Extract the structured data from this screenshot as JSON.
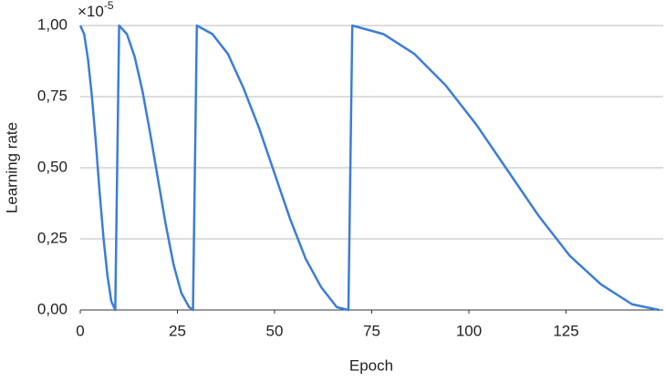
{
  "chart_data": {
    "type": "line",
    "x_label": "Epoch",
    "y_label": "Learning rate",
    "y_multiplier": "×10",
    "y_multiplier_exponent": "-5",
    "xlim": [
      0,
      150
    ],
    "xticks": [
      0,
      25,
      50,
      75,
      100,
      125
    ],
    "ylim": [
      0,
      1
    ],
    "yticks": [
      {
        "value": 0,
        "label": "0,00"
      },
      {
        "value": 0.25,
        "label": "0,25"
      },
      {
        "value": 0.5,
        "label": "0,50"
      },
      {
        "value": 0.75,
        "label": "0,75"
      },
      {
        "value": 1,
        "label": "1,00"
      }
    ],
    "grid": true,
    "series": [
      {
        "color": "#3b7dd8",
        "x": [
          0,
          1,
          2,
          3,
          4,
          5,
          6,
          7,
          8,
          9,
          10,
          12,
          14,
          16,
          18,
          20,
          22,
          24,
          26,
          28,
          29,
          30,
          34,
          38,
          42,
          46,
          50,
          54,
          58,
          62,
          66,
          69,
          70,
          78,
          86,
          94,
          102,
          110,
          118,
          126,
          134,
          142,
          149
        ],
        "values": [
          1.0,
          0.97,
          0.88,
          0.75,
          0.59,
          0.41,
          0.25,
          0.12,
          0.03,
          0,
          1.0,
          0.97,
          0.89,
          0.77,
          0.62,
          0.46,
          0.3,
          0.16,
          0.06,
          0.01,
          0,
          1.0,
          0.97,
          0.9,
          0.78,
          0.64,
          0.48,
          0.32,
          0.18,
          0.08,
          0.01,
          0,
          1.0,
          0.97,
          0.9,
          0.79,
          0.65,
          0.49,
          0.33,
          0.19,
          0.09,
          0.02,
          0
        ]
      }
    ]
  }
}
